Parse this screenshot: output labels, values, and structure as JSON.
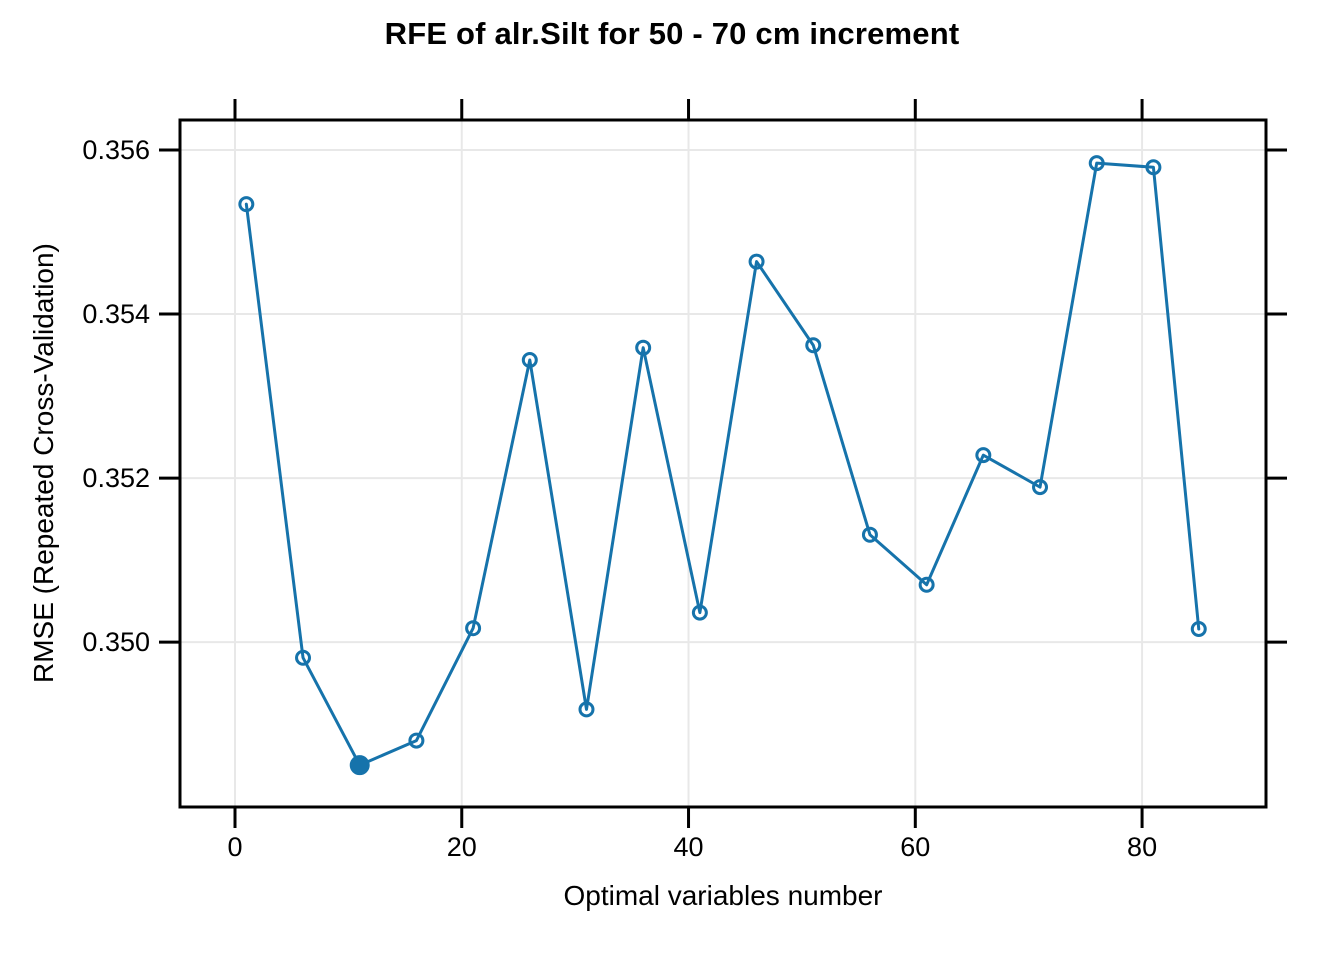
{
  "title": "RFE of alr.Silt for 50 - 70 cm increment",
  "chart_data": {
    "type": "line",
    "title": "RFE of alr.Silt for 50 - 70 cm increment",
    "xlabel": "Optimal variables number",
    "ylabel": "RMSE (Repeated Cross-Validation)",
    "x": [
      1,
      6,
      11,
      16,
      21,
      26,
      31,
      36,
      41,
      46,
      51,
      56,
      61,
      66,
      71,
      76,
      81,
      85
    ],
    "y": [
      0.35534,
      0.34981,
      0.3485,
      0.3488,
      0.35017,
      0.35344,
      0.34918,
      0.35359,
      0.35036,
      0.35464,
      0.35362,
      0.35131,
      0.3507,
      0.35228,
      0.35189,
      0.35584,
      0.35579,
      0.35016
    ],
    "best_x": 11,
    "best_y": 0.3485,
    "x_ticks": [
      0,
      20,
      40,
      60,
      80
    ],
    "y_ticks": [
      0.35,
      0.352,
      0.354,
      0.356
    ],
    "y_tick_labels": [
      "0.350",
      "0.352",
      "0.354",
      "0.356"
    ],
    "xlim": [
      -4.85,
      90.93
    ],
    "ylim": [
      0.34799,
      0.356366
    ],
    "grid": true,
    "legend": "none",
    "line_color": "#1673ab",
    "grid_color": "#e8e8e8",
    "box_color": "#000000"
  }
}
